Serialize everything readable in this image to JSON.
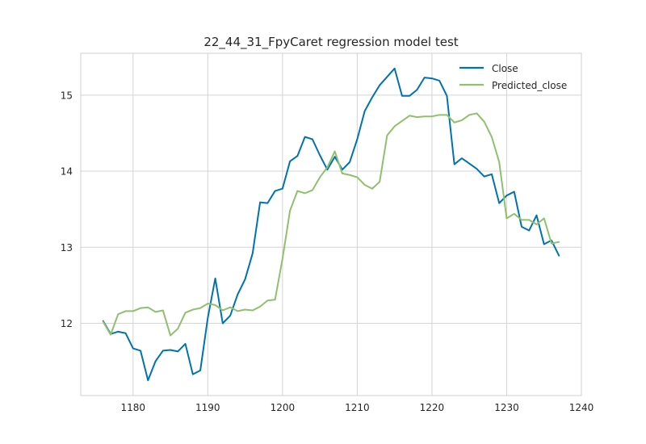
{
  "chart_data": {
    "type": "line",
    "title": "22_44_31_FpyCaret regression model test",
    "xlabel": "",
    "ylabel": "",
    "xlim": [
      1173,
      1240
    ],
    "ylim": [
      11.05,
      15.55
    ],
    "xticks": [
      1180,
      1190,
      1200,
      1210,
      1220,
      1230,
      1240
    ],
    "yticks": [
      12,
      13,
      14,
      15
    ],
    "grid": true,
    "legend_position": "top-right",
    "x": [
      1176,
      1177,
      1178,
      1179,
      1180,
      1181,
      1182,
      1183,
      1184,
      1185,
      1186,
      1187,
      1188,
      1189,
      1190,
      1191,
      1192,
      1193,
      1194,
      1195,
      1196,
      1197,
      1198,
      1199,
      1200,
      1201,
      1202,
      1203,
      1204,
      1205,
      1206,
      1207,
      1208,
      1209,
      1210,
      1211,
      1212,
      1213,
      1214,
      1215,
      1216,
      1217,
      1218,
      1219,
      1220,
      1221,
      1222,
      1223,
      1224,
      1225,
      1226,
      1227,
      1228,
      1229,
      1230,
      1231,
      1232,
      1233,
      1234,
      1235,
      1236,
      1237
    ],
    "series": [
      {
        "name": "Close",
        "color": "#0072b2",
        "values": [
          12.03,
          11.86,
          11.89,
          11.87,
          11.67,
          11.64,
          11.25,
          11.5,
          11.64,
          11.65,
          11.63,
          11.73,
          11.33,
          11.38,
          12.07,
          12.59,
          12.0,
          12.1,
          12.38,
          12.58,
          12.92,
          13.59,
          13.58,
          13.74,
          13.77,
          14.13,
          14.2,
          14.45,
          14.42,
          14.21,
          14.02,
          14.19,
          14.02,
          14.12,
          14.42,
          14.79,
          14.97,
          15.13,
          15.24,
          15.35,
          14.99,
          14.99,
          15.07,
          15.23,
          15.22,
          15.19,
          14.99,
          14.09,
          14.17,
          14.1,
          14.03,
          13.93,
          13.96,
          13.58,
          13.68,
          13.73,
          13.27,
          13.22,
          13.42,
          13.04,
          13.09,
          12.89
        ]
      },
      {
        "name": "Predicted_close",
        "color": "#8fc16d",
        "values": [
          12.02,
          11.85,
          12.12,
          12.16,
          12.16,
          12.2,
          12.21,
          12.15,
          12.17,
          11.84,
          11.93,
          12.14,
          12.18,
          12.2,
          12.26,
          12.24,
          12.17,
          12.21,
          12.16,
          12.18,
          12.17,
          12.22,
          12.3,
          12.31,
          12.85,
          13.48,
          13.74,
          13.71,
          13.75,
          13.92,
          14.05,
          14.26,
          13.97,
          13.95,
          13.92,
          13.82,
          13.77,
          13.86,
          14.47,
          14.59,
          14.66,
          14.73,
          14.71,
          14.72,
          14.72,
          14.74,
          14.74,
          14.64,
          14.67,
          14.74,
          14.76,
          14.65,
          14.45,
          14.12,
          13.38,
          13.44,
          13.36,
          13.36,
          13.3,
          13.38,
          13.05,
          13.07
        ]
      }
    ]
  }
}
